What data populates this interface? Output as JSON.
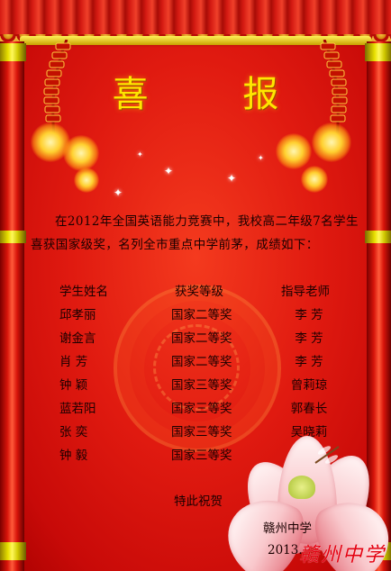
{
  "poster": {
    "title": "喜  报",
    "intro": "在2012年全国英语能力竞赛中，我校高二年级7名学生喜获国家级奖，名列全市重点中学前茅，成绩如下：",
    "table": {
      "headers": [
        "学生姓名",
        "获奖等级",
        "指导老师"
      ],
      "rows": [
        [
          "邱孝丽",
          "国家二等奖",
          "李  芳"
        ],
        [
          "谢金言",
          "国家二等奖",
          "李  芳"
        ],
        [
          "肖  芳",
          "国家二等奖",
          "李  芳"
        ],
        [
          "钟  颖",
          "国家三等奖",
          "曾莉琼"
        ],
        [
          "蓝若阳",
          "国家三等奖",
          "郭春长"
        ],
        [
          "张  奕",
          "国家三等奖",
          "吴晓莉"
        ],
        [
          "钟  毅",
          "国家三等奖",
          "李  芳"
        ]
      ]
    },
    "closing": "特此祝贺",
    "school": "赣州中学",
    "date": "2013.",
    "signature": "赣州中学"
  },
  "colors": {
    "background": "#e01a10",
    "title": "#ffe600",
    "text": "#1a0000",
    "signature": "#e40010"
  }
}
